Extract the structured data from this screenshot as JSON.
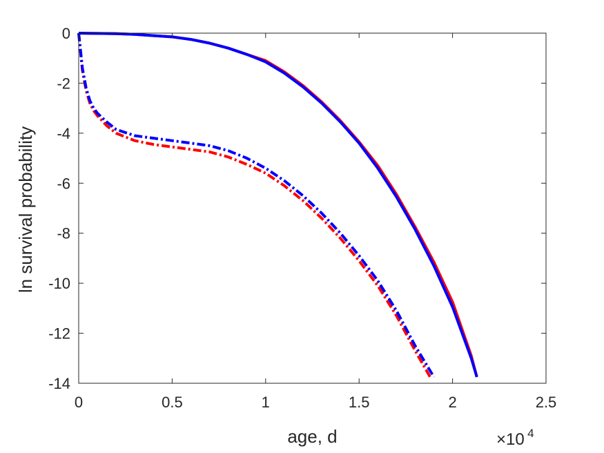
{
  "chart_data": {
    "type": "line",
    "xlabel": "age, d",
    "ylabel": "ln survival probability",
    "x_exponent_label": {
      "base": "×10",
      "power": "4"
    },
    "xlim": [
      0,
      2.5
    ],
    "ylim": [
      -14,
      0
    ],
    "x_ticks": [
      0,
      0.5,
      1,
      1.5,
      2,
      2.5
    ],
    "x_tick_labels": [
      "0",
      "0.5",
      "1",
      "1.5",
      "2",
      "2.5"
    ],
    "y_ticks": [
      0,
      -2,
      -4,
      -6,
      -8,
      -10,
      -12,
      -14
    ],
    "y_tick_labels": [
      "0",
      "-2",
      "-4",
      "-6",
      "-8",
      "-10",
      "-12",
      "-14"
    ],
    "grid": false,
    "series": [
      {
        "color": "#ff0000",
        "style": "solid",
        "x": [
          0,
          0.1,
          0.2,
          0.3,
          0.4,
          0.5,
          0.6,
          0.7,
          0.8,
          0.9,
          1.0,
          1.1,
          1.2,
          1.3,
          1.4,
          1.5,
          1.6,
          1.7,
          1.8,
          1.9,
          2.0,
          2.1,
          2.13
        ],
        "y": [
          0,
          -0.01,
          -0.02,
          -0.05,
          -0.1,
          -0.15,
          -0.25,
          -0.4,
          -0.6,
          -0.85,
          -1.1,
          -1.55,
          -2.1,
          -2.75,
          -3.5,
          -4.35,
          -5.3,
          -6.45,
          -7.75,
          -9.15,
          -10.75,
          -12.9,
          -13.75
        ]
      },
      {
        "color": "#0000ff",
        "style": "solid",
        "x": [
          0,
          0.1,
          0.2,
          0.3,
          0.4,
          0.5,
          0.6,
          0.7,
          0.8,
          0.9,
          1.0,
          1.1,
          1.2,
          1.3,
          1.4,
          1.5,
          1.6,
          1.7,
          1.8,
          1.9,
          2.0,
          2.1,
          2.13
        ],
        "y": [
          0,
          -0.01,
          -0.02,
          -0.05,
          -0.1,
          -0.15,
          -0.25,
          -0.4,
          -0.6,
          -0.85,
          -1.15,
          -1.6,
          -2.15,
          -2.8,
          -3.55,
          -4.4,
          -5.4,
          -6.55,
          -7.85,
          -9.3,
          -10.95,
          -13.0,
          -13.75
        ]
      },
      {
        "color": "#ff0000",
        "style": "dashdot",
        "x": [
          0,
          0.02,
          0.04,
          0.06,
          0.08,
          0.1,
          0.15,
          0.2,
          0.3,
          0.4,
          0.5,
          0.6,
          0.7,
          0.8,
          0.9,
          1.0,
          1.1,
          1.2,
          1.3,
          1.4,
          1.5,
          1.6,
          1.7,
          1.8,
          1.88
        ],
        "y": [
          0,
          -1.5,
          -2.3,
          -2.8,
          -3.1,
          -3.3,
          -3.7,
          -4.0,
          -4.3,
          -4.45,
          -4.55,
          -4.65,
          -4.75,
          -4.95,
          -5.25,
          -5.6,
          -6.1,
          -6.7,
          -7.4,
          -8.2,
          -9.1,
          -10.1,
          -11.3,
          -12.7,
          -13.75
        ]
      },
      {
        "color": "#0000ff",
        "style": "dashdot",
        "x": [
          0,
          0.02,
          0.04,
          0.06,
          0.08,
          0.1,
          0.15,
          0.2,
          0.3,
          0.4,
          0.5,
          0.6,
          0.7,
          0.8,
          0.9,
          1.0,
          1.1,
          1.2,
          1.3,
          1.4,
          1.5,
          1.6,
          1.7,
          1.8,
          1.9
        ],
        "y": [
          0,
          -1.4,
          -2.2,
          -2.7,
          -3.0,
          -3.2,
          -3.55,
          -3.85,
          -4.1,
          -4.2,
          -4.3,
          -4.4,
          -4.5,
          -4.7,
          -5.0,
          -5.4,
          -5.9,
          -6.5,
          -7.2,
          -8.0,
          -8.9,
          -9.9,
          -11.1,
          -12.5,
          -13.75
        ]
      }
    ]
  }
}
